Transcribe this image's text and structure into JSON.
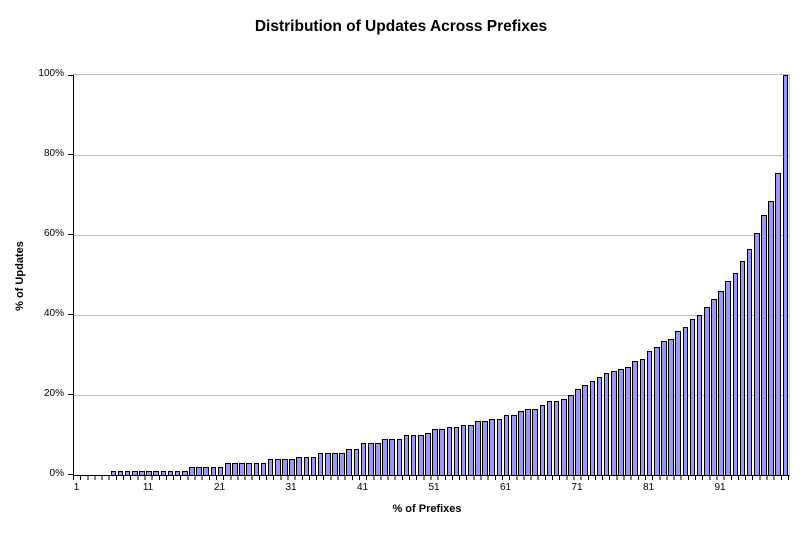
{
  "chart_data": {
    "type": "bar",
    "title": "Distribution of Updates Across Prefixes",
    "xlabel": "% of Prefixes",
    "ylabel": "% of Updates",
    "x_start": 1,
    "categories_note": "bars represent % of prefixes from 1 to 100",
    "values": [
      0,
      0,
      0,
      0,
      0,
      1,
      1,
      1,
      1,
      1,
      1,
      1,
      1,
      1,
      1,
      1,
      2,
      2,
      2,
      2,
      2,
      3,
      3,
      3,
      3,
      3,
      3,
      4,
      4,
      4,
      4,
      4.5,
      4.5,
      4.5,
      5.5,
      5.5,
      5.5,
      5.5,
      6.5,
      6.5,
      8,
      8,
      8,
      9,
      9,
      9,
      10,
      10,
      10,
      10.5,
      11.5,
      11.5,
      12,
      12,
      12.5,
      12.5,
      13.5,
      13.5,
      14,
      14,
      15,
      15,
      16,
      16.5,
      16.5,
      17.5,
      18.5,
      18.5,
      19,
      20,
      21.5,
      22.5,
      23.5,
      24.5,
      25.5,
      26,
      26.5,
      27,
      28.5,
      29,
      31,
      32,
      33.5,
      34,
      36,
      37,
      39,
      40,
      42,
      44,
      46,
      48.5,
      50.5,
      53.5,
      56.5,
      60.5,
      65,
      68.5,
      75.5,
      100
    ],
    "x_tick_labels": [
      "1",
      "11",
      "21",
      "31",
      "41",
      "51",
      "61",
      "71",
      "81",
      "91"
    ],
    "y_tick_labels": [
      "0%",
      "20%",
      "40%",
      "60%",
      "80%",
      "100%"
    ],
    "ylim": [
      0,
      100
    ],
    "grid": "horizontal gridlines every 20%",
    "legend": "none",
    "colors": {
      "bar_fill": "#9999F0",
      "bar_border": "#000000",
      "gridline": "#C0C0C0",
      "axis": "#000000",
      "background": "#FFFFFF",
      "text": "#000000"
    }
  }
}
